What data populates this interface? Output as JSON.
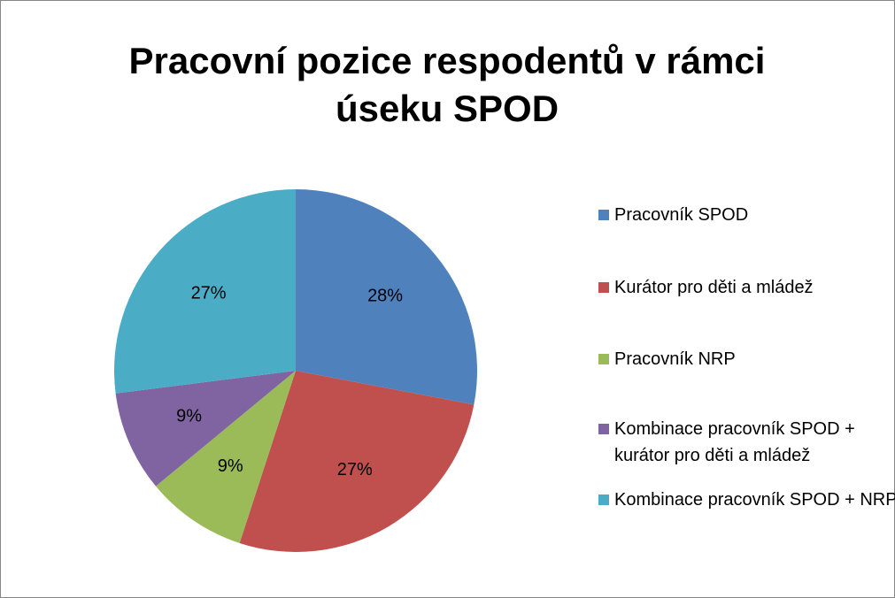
{
  "chart_data": {
    "type": "pie",
    "title": "Pracovní pozice respodentů v rámci úseku SPOD",
    "categories": [
      "Pracovník SPOD",
      "Kurátor pro děti a mládež",
      "Pracovník NRP",
      "Kombinace pracovník SPOD + kurátor pro děti a mládež",
      "Kombinace pracovník SPOD + NRP"
    ],
    "values": [
      28,
      27,
      9,
      9,
      27
    ],
    "value_labels": [
      "28%",
      "27%",
      "9%",
      "9%",
      "27%"
    ],
    "colors": [
      "#4f81bd",
      "#c0504d",
      "#9bbb59",
      "#8064a2",
      "#4bacc6"
    ],
    "legend": "right"
  }
}
